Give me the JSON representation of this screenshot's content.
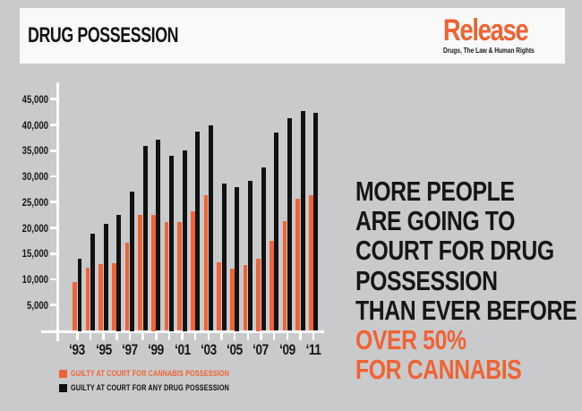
{
  "header": {
    "title": "DRUG POSSESSION",
    "logo": {
      "name": "Release",
      "tagline": "Drugs, The Law & Human Rights"
    }
  },
  "colors": {
    "accent_orange": "#EF6334",
    "ink_black": "#141414",
    "background_gray": "#C9CACC",
    "panel_white": "#F9F9F9",
    "axis_white": "#FFFFFF"
  },
  "chart_data": {
    "type": "bar",
    "title": "",
    "xlabel": "",
    "ylabel": "",
    "categories": [
      "1993",
      "1994",
      "1995",
      "1996",
      "1997",
      "1998",
      "1999",
      "2000",
      "2001",
      "2002",
      "2003",
      "2004",
      "2005",
      "2006",
      "2007",
      "2008",
      "2009",
      "2010",
      "2011"
    ],
    "x_tick_labels": [
      "‘93",
      "",
      "‘95",
      "",
      "‘97",
      "",
      "‘99",
      "",
      "‘01",
      "",
      "‘03",
      "",
      "‘05",
      "",
      "‘07",
      "",
      "‘09",
      "",
      "‘11"
    ],
    "series": [
      {
        "name": "GUILTY AT COURT FOR CANNABIS POSSESSION",
        "color": "#EF6334",
        "values": [
          9400,
          12300,
          12900,
          13100,
          17100,
          22600,
          22500,
          21100,
          21100,
          23200,
          26300,
          13300,
          12100,
          12800,
          14000,
          17400,
          21300,
          25600,
          26400
        ]
      },
      {
        "name": "GUILTY AT COURT FOR ANY DRUG POSSESSION",
        "color": "#111111",
        "values": [
          14000,
          18900,
          20800,
          22500,
          27000,
          35900,
          37100,
          34000,
          35000,
          38700,
          39900,
          28600,
          28000,
          29100,
          31700,
          38600,
          41300,
          42700,
          42400
        ]
      }
    ],
    "ylim": [
      0,
      45000
    ],
    "y_ticks": [
      5000,
      10000,
      15000,
      20000,
      25000,
      30000,
      35000,
      40000,
      45000
    ],
    "grid": false,
    "legend_position": "bottom-left"
  },
  "headline": {
    "lines": [
      {
        "text": "MORE PEOPLE",
        "color": "#161616"
      },
      {
        "text": "ARE GOING TO",
        "color": "#161616"
      },
      {
        "text": "COURT FOR DRUG",
        "color": "#161616"
      },
      {
        "text": "POSSESSION",
        "color": "#161616"
      },
      {
        "text": "THAN EVER BEFORE",
        "color": "#161616"
      },
      {
        "text": "OVER 50%",
        "color": "#EF6334"
      },
      {
        "text": "FOR CANNABIS",
        "color": "#EF6334"
      }
    ]
  }
}
